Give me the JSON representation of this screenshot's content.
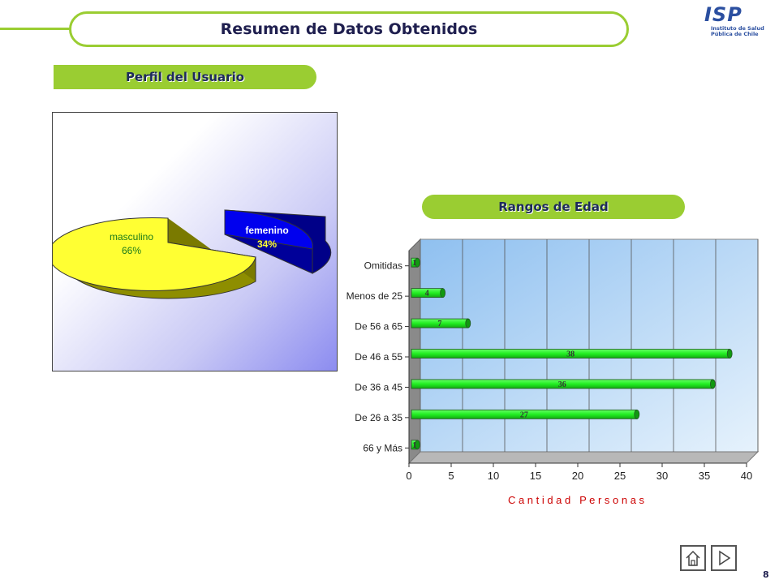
{
  "header": {
    "title": "Resumen de Datos Obtenidos",
    "logo_text": "ISP",
    "logo_sub_1": "Instituto de Salud",
    "logo_sub_2": "Pública de Chile"
  },
  "sections": {
    "pie_title": "Perfil del Usuario",
    "bar_title": "Rangos de Edad"
  },
  "chart_data": [
    {
      "type": "pie",
      "labels": [
        "masculino",
        "femenino"
      ],
      "values": [
        66,
        34
      ],
      "value_labels": [
        "66%",
        "34%"
      ],
      "colors": [
        "#ffff33",
        "#0000ee"
      ]
    },
    {
      "type": "bar",
      "orientation": "horizontal",
      "categories": [
        "Omitidas",
        "Menos de 25",
        "De 56 a 65",
        "De 46 a 55",
        "De 36 a 45",
        "De 26 a 35",
        "66 y Más"
      ],
      "values": [
        1,
        4,
        7,
        38,
        36,
        27,
        1
      ],
      "xlabel": "C a n t i d a d   P e r s o n a s",
      "xlim": [
        0,
        40
      ],
      "xticks": [
        0,
        5,
        10,
        15,
        20,
        25,
        30,
        35,
        40
      ],
      "grid": true,
      "bar_color": "#22ee22"
    }
  ],
  "footer": {
    "page_number": "8",
    "home_icon": "home-icon",
    "next_icon": "next-triangle-icon"
  }
}
